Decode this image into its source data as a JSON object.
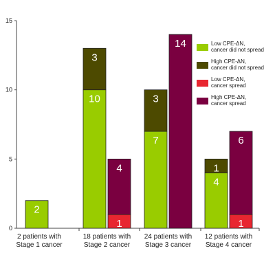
{
  "chart_data": {
    "type": "bar",
    "stacked": true,
    "ylim": [
      0,
      15
    ],
    "yticks": [
      "0",
      "5",
      "10",
      "15"
    ],
    "grid": false,
    "legend_placement": "right",
    "categories": [
      [
        "2 patients with",
        "Stage 1 cancer"
      ],
      [
        "18 patients with",
        "Stage 2 cancer"
      ],
      [
        "24 patients with",
        "Stage 3 cancer"
      ],
      [
        "12 patients with",
        "Stage 4 cancer"
      ]
    ],
    "series": [
      {
        "key": "low_no_spread",
        "name": [
          "Low CPE-ΔN,",
          "cancer did not spread"
        ],
        "color": "#99cc00"
      },
      {
        "key": "high_no_spread",
        "name": [
          "High CPE-ΔN,",
          "cancer did not spread"
        ],
        "color": "#4d4a00"
      },
      {
        "key": "low_spread",
        "name": [
          "Low CPE-ΔN,",
          "cancer spread"
        ],
        "color": "#e82630"
      },
      {
        "key": "high_spread",
        "name": [
          "High CPE-ΔN,",
          "cancer spread"
        ],
        "color": "#7a0040"
      }
    ],
    "bars": [
      {
        "category": 0,
        "position": "left",
        "segments": [
          {
            "series": "low_no_spread",
            "value": 2,
            "label": "2"
          }
        ]
      },
      {
        "category": 1,
        "position": "left",
        "segments": [
          {
            "series": "low_no_spread",
            "value": 10,
            "label": "10"
          },
          {
            "series": "high_no_spread",
            "value": 3,
            "label": "3"
          }
        ]
      },
      {
        "category": 1,
        "position": "right",
        "segments": [
          {
            "series": "low_spread",
            "value": 1,
            "label": "1"
          },
          {
            "series": "high_spread",
            "value": 4,
            "label": "4"
          }
        ]
      },
      {
        "category": 2,
        "position": "left",
        "segments": [
          {
            "series": "low_no_spread",
            "value": 7,
            "label": "7"
          },
          {
            "series": "high_no_spread",
            "value": 3,
            "label": "3"
          }
        ]
      },
      {
        "category": 2,
        "position": "right",
        "segments": [
          {
            "series": "high_spread",
            "value": 14,
            "label": "14"
          }
        ]
      },
      {
        "category": 3,
        "position": "left",
        "segments": [
          {
            "series": "low_no_spread",
            "value": 4,
            "label": "4"
          },
          {
            "series": "high_no_spread",
            "value": 1,
            "label": "1"
          }
        ]
      },
      {
        "category": 3,
        "position": "right",
        "segments": [
          {
            "series": "low_spread",
            "value": 1,
            "label": "1"
          },
          {
            "series": "high_spread",
            "value": 6,
            "label": "6"
          }
        ]
      }
    ]
  }
}
